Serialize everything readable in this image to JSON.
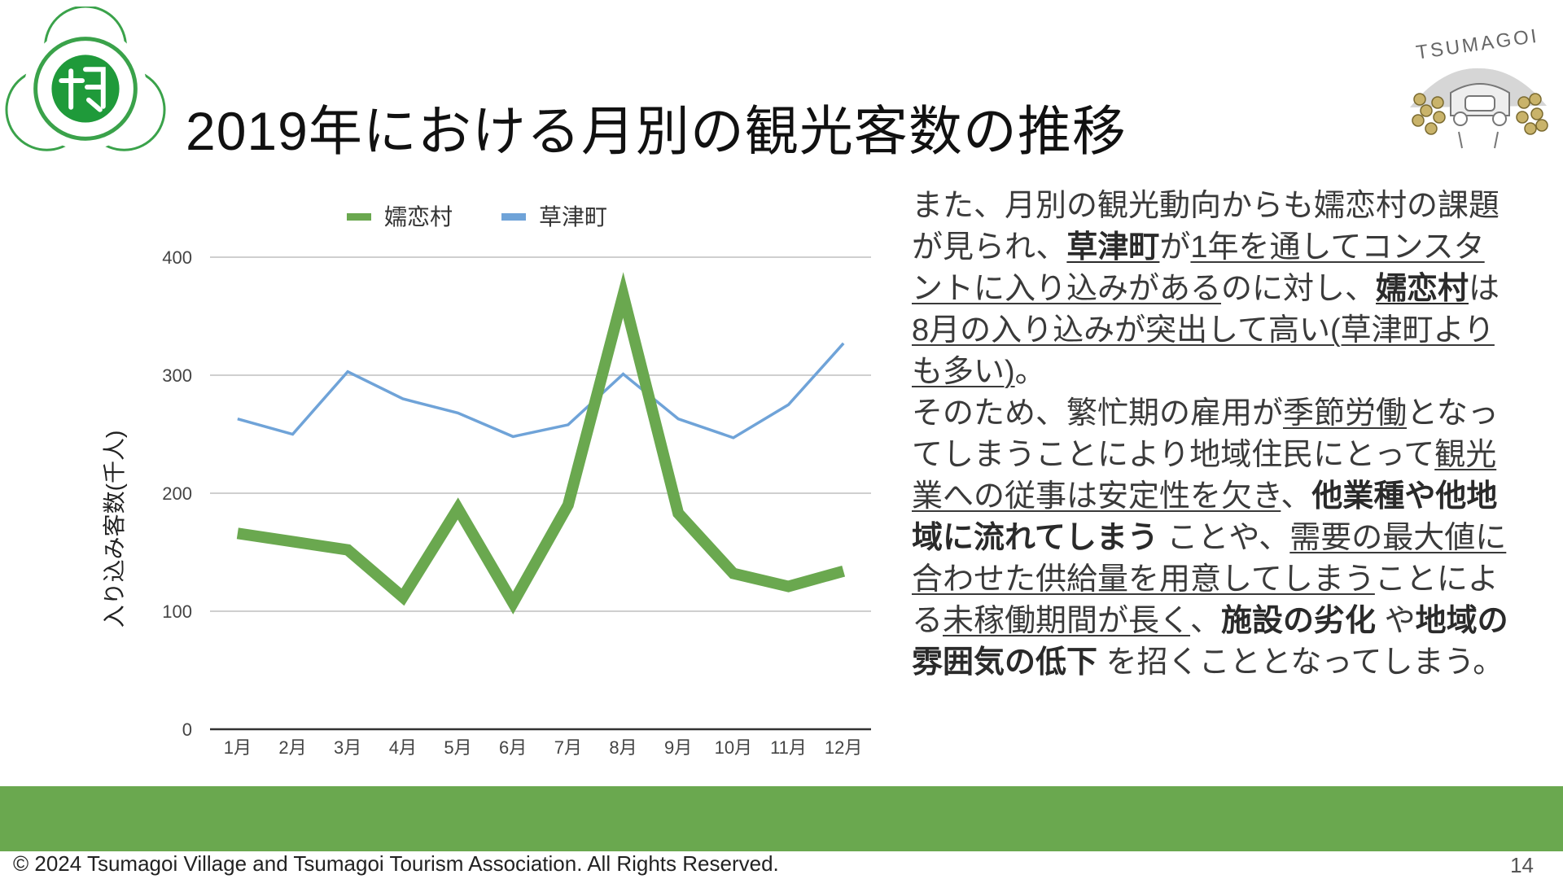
{
  "slide": {
    "title": "2019年における月別の観光客数の推移",
    "footer": "© 2024 Tsumagoi Village and Tsumagoi Tourism Association. All Rights Reserved.",
    "page_number": "14",
    "logo_right_text": "TSUMAGOI",
    "colors": {
      "band": "#6aa84f",
      "series_tsumagoi": "#6aa84f",
      "series_kusatsu": "#6fa3d8"
    }
  },
  "chart_data": {
    "type": "line",
    "title": "",
    "ylabel": "入り込み客数(千人)",
    "xlabel": "",
    "ylim": [
      0,
      400
    ],
    "yticks": [
      "0",
      "100",
      "200",
      "300",
      "400"
    ],
    "categories": [
      "1月",
      "2月",
      "3月",
      "4月",
      "5月",
      "6月",
      "7月",
      "8月",
      "9月",
      "10月",
      "11月",
      "12月"
    ],
    "grid": true,
    "legend_position": "top",
    "series": [
      {
        "name": "嬬恋村",
        "values": [
          166,
          159,
          152,
          112,
          187,
          107,
          190,
          368,
          183,
          132,
          121,
          134
        ]
      },
      {
        "name": "草津町",
        "values": [
          263,
          250,
          303,
          280,
          268,
          248,
          258,
          301,
          263,
          247,
          275,
          327
        ]
      }
    ]
  },
  "text_block": {
    "p1": [
      {
        "t": "また、月別の観光動向からも嬬恋村の課題が見られ、",
        "s": "n"
      },
      {
        "t": "草津町",
        "s": "bu"
      },
      {
        "t": "が",
        "s": "n"
      },
      {
        "t": "1年を通してコンスタントに入り込みがある",
        "s": "u"
      },
      {
        "t": "のに対し、",
        "s": "n"
      },
      {
        "t": "嬬恋村",
        "s": "bu"
      },
      {
        "t": "は",
        "s": "n"
      },
      {
        "t": "8月の入り込みが突出して高い(草津町よりも多い)",
        "s": "u"
      },
      {
        "t": "。",
        "s": "n"
      }
    ],
    "p2": [
      {
        "t": "そのため、繁忙期の雇用が",
        "s": "n"
      },
      {
        "t": "季節労働",
        "s": "u"
      },
      {
        "t": "となってしまうことにより地域住民にとって",
        "s": "n"
      },
      {
        "t": "観光業への従事は安定性を欠き",
        "s": "u"
      },
      {
        "t": "、",
        "s": "n"
      },
      {
        "t": "他業種や他地域に流れてしまう",
        "s": "b"
      },
      {
        "t": " ことや、",
        "s": "n"
      },
      {
        "t": "需要の最大値に合わせた供給量を用意してしまう",
        "s": "u"
      },
      {
        "t": "ことによる",
        "s": "n"
      },
      {
        "t": "未稼働期間が長く",
        "s": "u"
      },
      {
        "t": "、",
        "s": "n"
      },
      {
        "t": "施設の劣化",
        "s": "b"
      },
      {
        "t": " や",
        "s": "n"
      },
      {
        "t": "地域の雰囲気の低下",
        "s": "b"
      },
      {
        "t": " を招くこととなってしまう。",
        "s": "n"
      }
    ]
  }
}
